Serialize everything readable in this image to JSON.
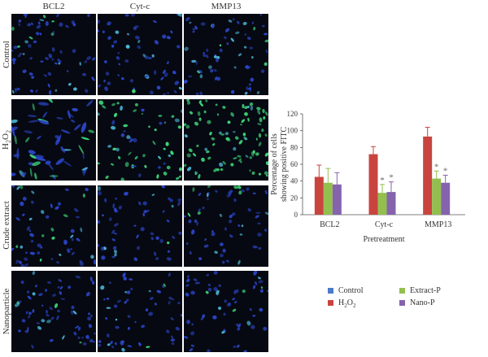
{
  "figure": {
    "columns": [
      "BCL2",
      "Cyt-c",
      "MMP13"
    ],
    "rows": [
      "Control",
      "H<sub>2</sub>O<sub>2</sub>",
      "Crude extract",
      "Nanoparticle"
    ],
    "row_texts": [
      "Control",
      "H2O2",
      "Crude extract",
      "Nanoparticle"
    ],
    "stain_colors": {
      "background": "#060912",
      "nucleus": "#2b45c8",
      "fitc": "#3fd87a",
      "cyan": "#4bb8d8"
    }
  },
  "chart_data": {
    "type": "bar",
    "categories": [
      "BCL2",
      "Cyt-c",
      "MMP13"
    ],
    "series": [
      {
        "name": "Control",
        "color": "#4a7cc8",
        "values": [
          0,
          0,
          0
        ],
        "errors": [
          0,
          0,
          0
        ]
      },
      {
        "name": "H2O2",
        "color": "#c9443f",
        "values": [
          45,
          72,
          93
        ],
        "errors": [
          14,
          9,
          11
        ]
      },
      {
        "name": "Extract-P",
        "color": "#93bf4f",
        "values": [
          38,
          26,
          43
        ],
        "errors": [
          17,
          10,
          9
        ]
      },
      {
        "name": "Nano-P",
        "color": "#8563ad",
        "values": [
          36,
          27,
          38
        ],
        "errors": [
          14,
          12,
          9
        ]
      }
    ],
    "significance": [
      [],
      [
        "*",
        "*"
      ],
      [
        "*",
        "*"
      ]
    ],
    "ylabel_line1": "Percentage of cells",
    "ylabel_line2": "showing positive FITC",
    "xlabel": "Pretreatment",
    "ylim": [
      0,
      120
    ],
    "yticks": [
      "0",
      "20",
      "40",
      "60",
      "80",
      "100",
      "120"
    ],
    "legend": {
      "placement": "bottom",
      "entries": [
        "Control",
        "Extract-P",
        "H2O2",
        "Nano-P"
      ]
    }
  }
}
